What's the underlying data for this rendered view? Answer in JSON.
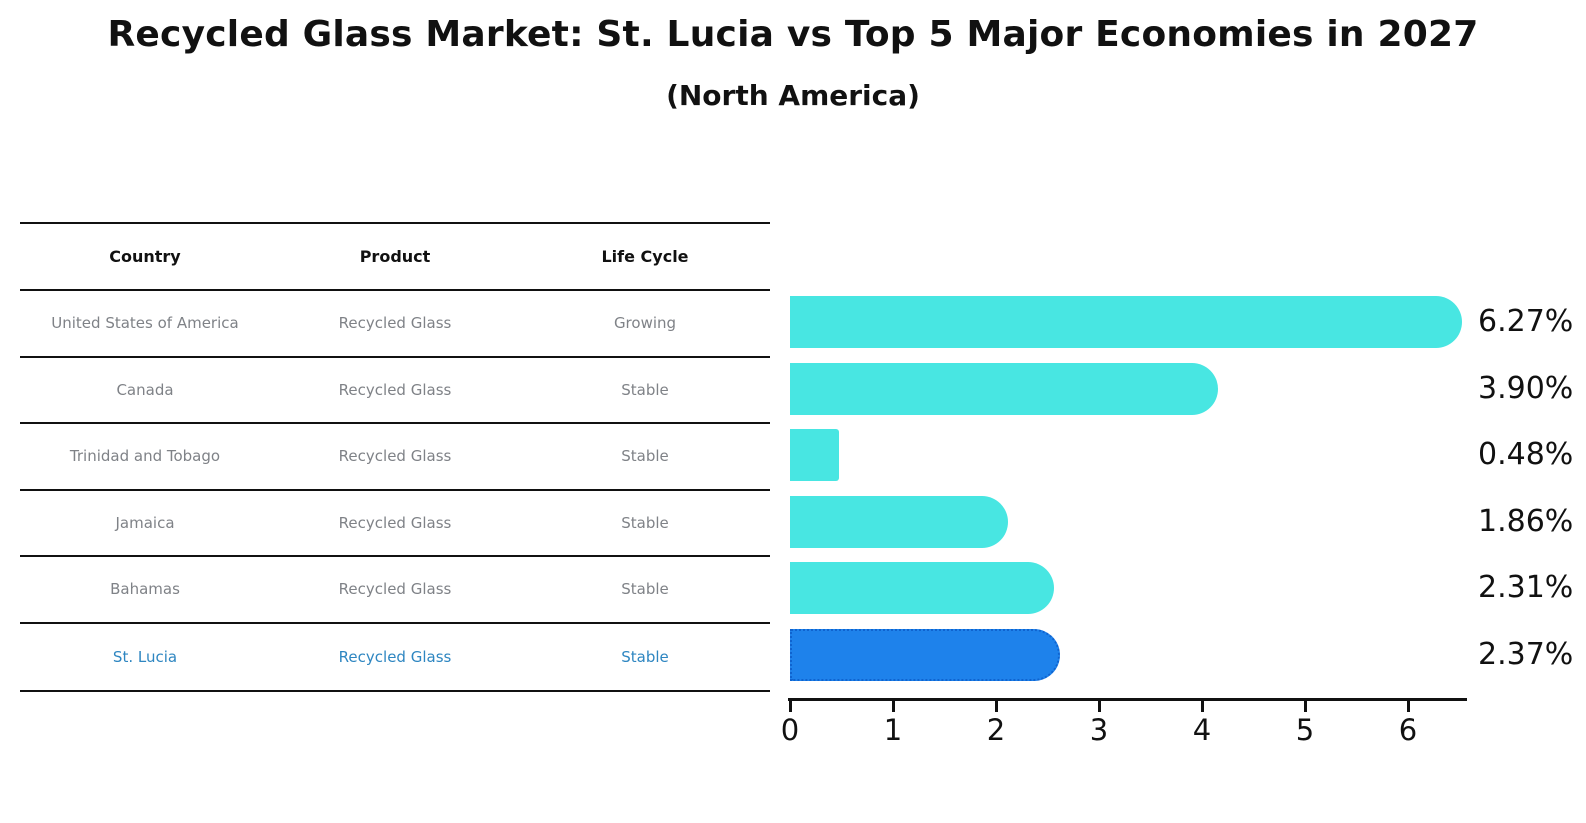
{
  "title": "Recycled Glass Market: St. Lucia vs Top 5 Major Economies in 2027",
  "subtitle": "(North America)",
  "table": {
    "headers": [
      "Country",
      "Product",
      "Life Cycle"
    ],
    "rows": [
      {
        "country": "United States of America",
        "product": "Recycled Glass",
        "life_cycle": "Growing",
        "highlight": false
      },
      {
        "country": "Canada",
        "product": "Recycled Glass",
        "life_cycle": "Stable",
        "highlight": false
      },
      {
        "country": "Trinidad and Tobago",
        "product": "Recycled Glass",
        "life_cycle": "Stable",
        "highlight": false
      },
      {
        "country": "Jamaica",
        "product": "Recycled Glass",
        "life_cycle": "Stable",
        "highlight": false
      },
      {
        "country": "Bahamas",
        "product": "Recycled Glass",
        "life_cycle": "Stable",
        "highlight": false
      },
      {
        "country": "St. Lucia",
        "product": "Recycled Glass",
        "life_cycle": "Stable",
        "highlight": true
      }
    ]
  },
  "chart_data": {
    "type": "bar",
    "orientation": "horizontal",
    "title": "Recycled Glass Market: St. Lucia vs Top 5 Major Economies in 2027",
    "subtitle": "(North America)",
    "categories": [
      "United States of America",
      "Canada",
      "Trinidad and Tobago",
      "Jamaica",
      "Bahamas",
      "St. Lucia"
    ],
    "values": [
      6.27,
      3.9,
      0.48,
      1.86,
      2.31,
      2.37
    ],
    "value_labels": [
      "6.27%",
      "3.90%",
      "0.48%",
      "1.86%",
      "2.31%",
      "2.37%"
    ],
    "xlabel": "",
    "ylabel": "",
    "xlim": [
      0,
      6.57
    ],
    "xticks": [
      0,
      1,
      2,
      3,
      4,
      5,
      6
    ],
    "grid": false,
    "legend": false,
    "highlight_index": 5,
    "colors": {
      "bar": "#48e6e2",
      "highlight_bar": "#1e82eb",
      "highlight_border": "#0f63cf",
      "highlight_text": "#2e86c1",
      "muted_text": "#7f8287",
      "axis": "#111111"
    }
  }
}
